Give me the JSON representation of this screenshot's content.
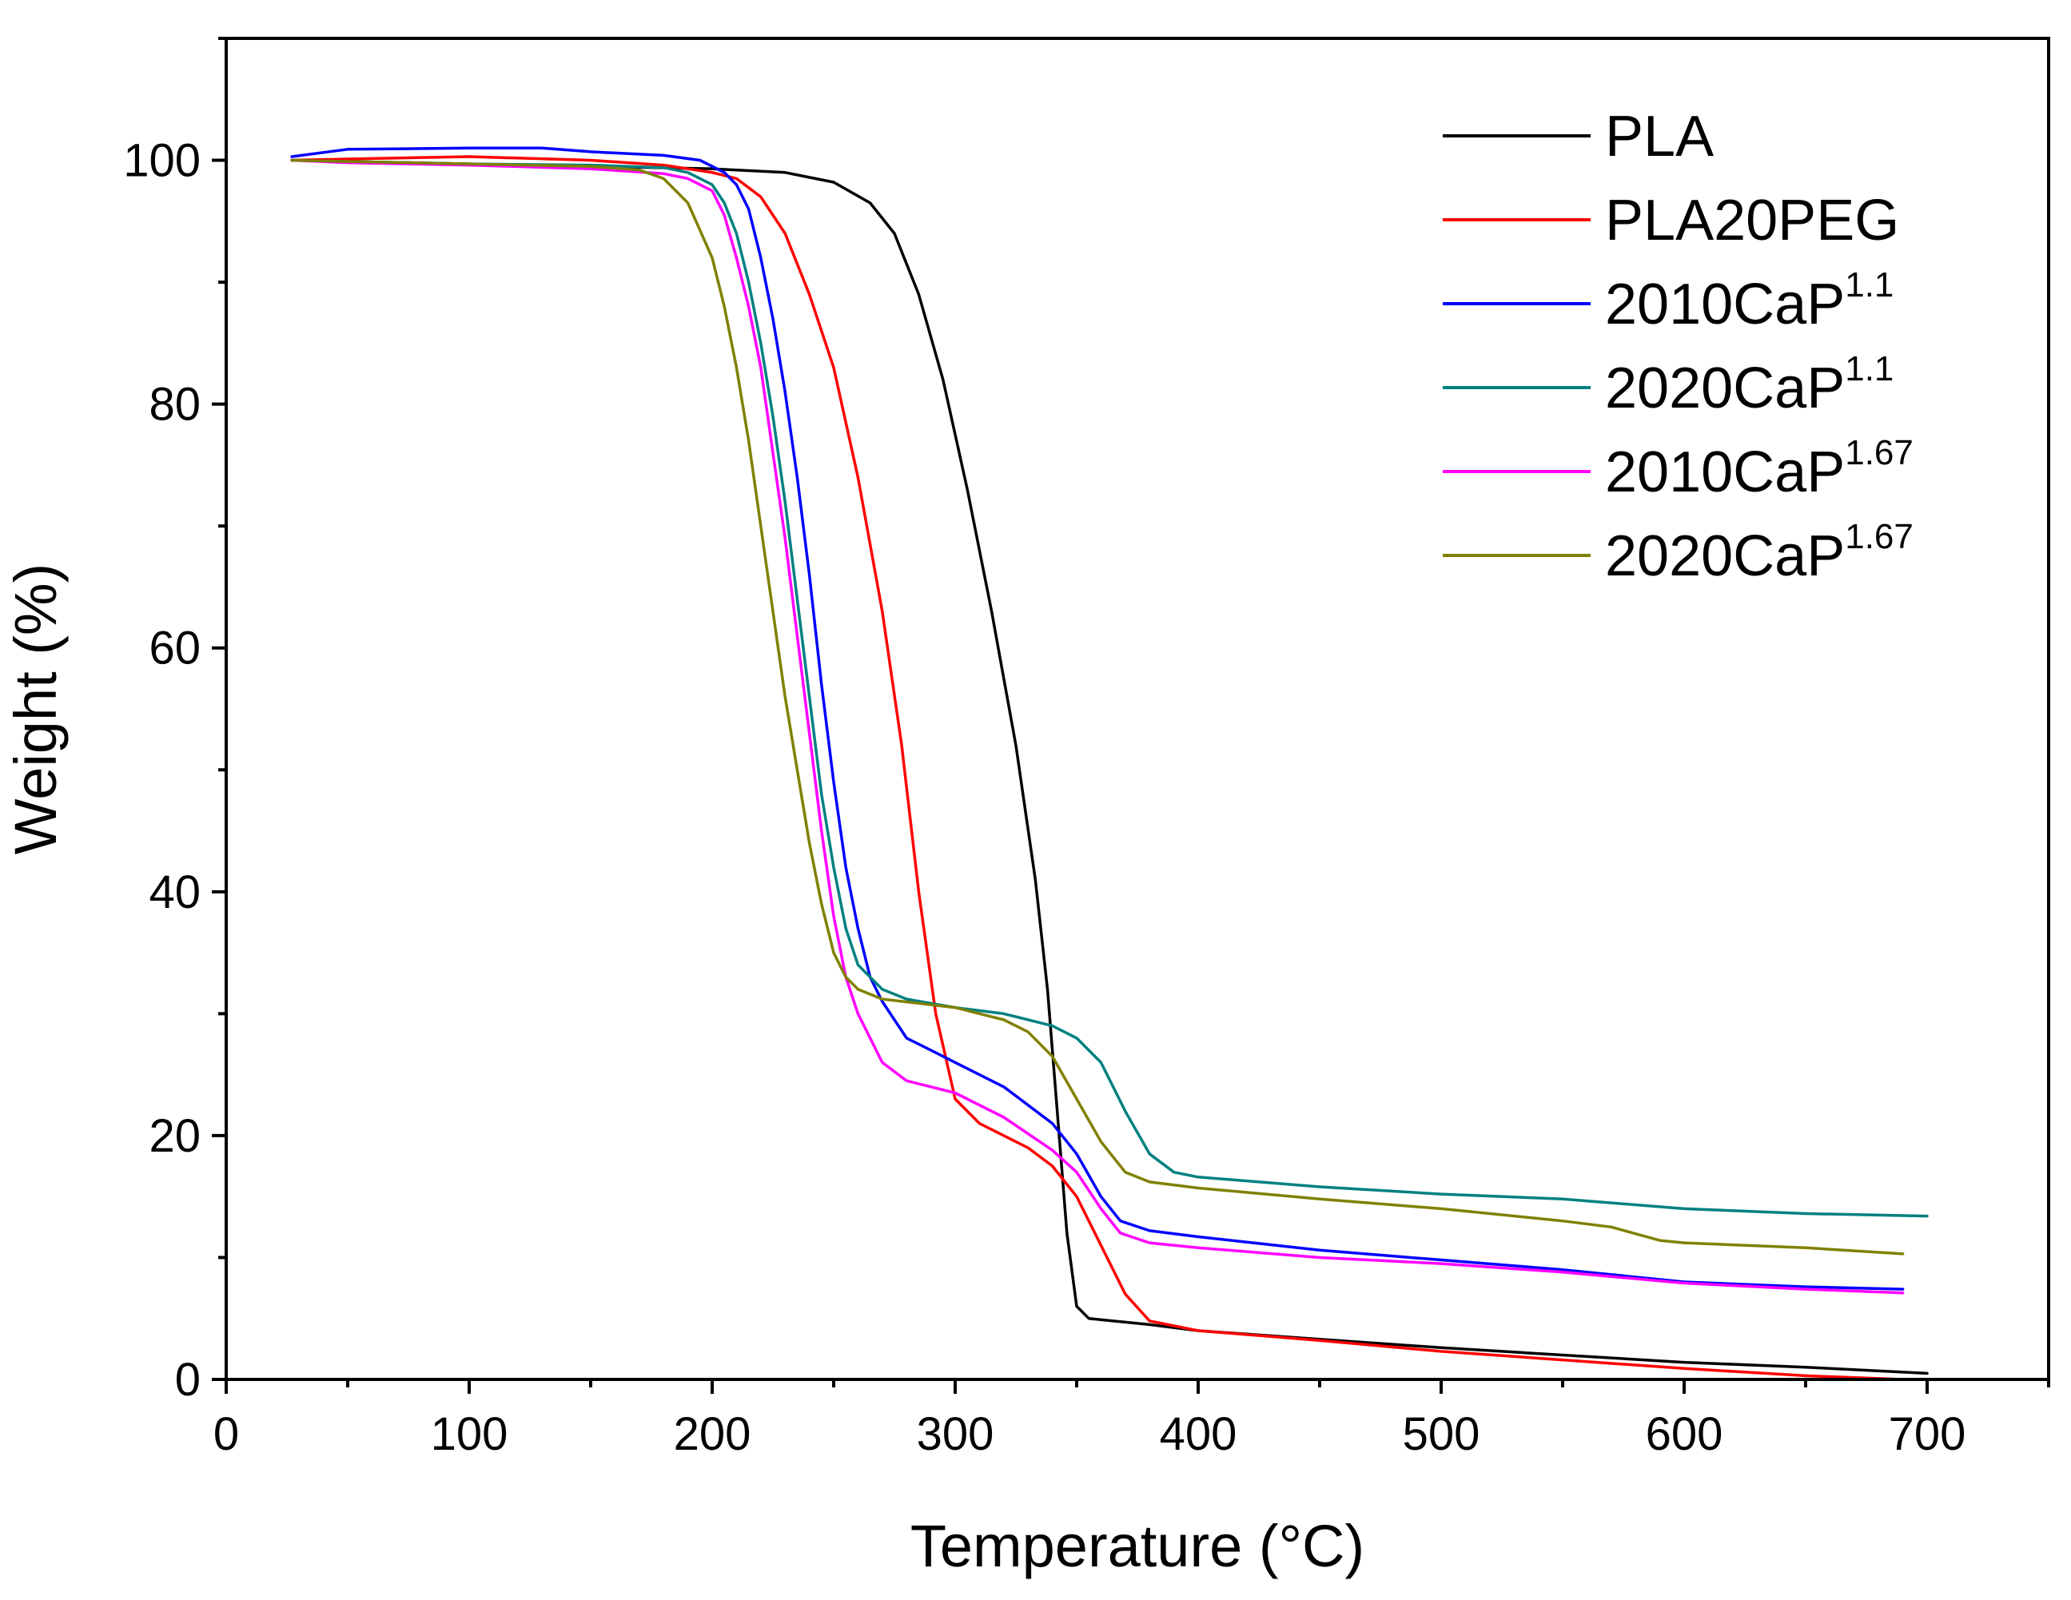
{
  "chart_data": {
    "type": "line",
    "title": "",
    "xlabel": "Temperature (°C)",
    "ylabel": "Weight (%)",
    "xlim": [
      0,
      750
    ],
    "ylim": [
      0,
      110
    ],
    "xticks": [
      0,
      100,
      200,
      300,
      400,
      500,
      600,
      700
    ],
    "yticks": [
      0,
      20,
      40,
      60,
      80,
      100
    ],
    "xtick_labels": [
      "0",
      "100",
      "200",
      "300",
      "400",
      "500",
      "600",
      "700"
    ],
    "ytick_labels": [
      "0",
      "20",
      "40",
      "60",
      "80",
      "100"
    ],
    "grid": false,
    "legend_position": "top-right",
    "series": [
      {
        "name": "PLA",
        "base": "PLA",
        "sup": "",
        "color": "#000000",
        "points": [
          [
            27,
            100
          ],
          [
            50,
            99.9
          ],
          [
            100,
            99.7
          ],
          [
            150,
            99.5
          ],
          [
            200,
            99.3
          ],
          [
            230,
            99
          ],
          [
            250,
            98.2
          ],
          [
            265,
            96.5
          ],
          [
            275,
            94
          ],
          [
            285,
            89
          ],
          [
            295,
            82
          ],
          [
            305,
            73
          ],
          [
            315,
            63
          ],
          [
            325,
            52
          ],
          [
            333,
            41
          ],
          [
            338,
            32
          ],
          [
            342,
            22
          ],
          [
            346,
            12
          ],
          [
            350,
            6
          ],
          [
            355,
            5
          ],
          [
            380,
            4.5
          ],
          [
            400,
            4
          ],
          [
            450,
            3.3
          ],
          [
            500,
            2.6
          ],
          [
            550,
            2
          ],
          [
            600,
            1.4
          ],
          [
            650,
            1
          ],
          [
            700,
            0.5
          ]
        ]
      },
      {
        "name": "PLA20PEG",
        "base": "PLA20PEG",
        "sup": "",
        "color": "#ff0000",
        "points": [
          [
            27,
            100
          ],
          [
            50,
            100.1
          ],
          [
            100,
            100.3
          ],
          [
            150,
            100
          ],
          [
            180,
            99.6
          ],
          [
            200,
            99
          ],
          [
            210,
            98.5
          ],
          [
            220,
            97
          ],
          [
            230,
            94
          ],
          [
            240,
            89
          ],
          [
            250,
            83
          ],
          [
            260,
            74
          ],
          [
            270,
            63
          ],
          [
            278,
            52
          ],
          [
            285,
            40
          ],
          [
            292,
            30
          ],
          [
            300,
            23
          ],
          [
            310,
            21
          ],
          [
            320,
            20
          ],
          [
            330,
            19
          ],
          [
            340,
            17.5
          ],
          [
            350,
            15
          ],
          [
            360,
            11
          ],
          [
            370,
            7
          ],
          [
            380,
            4.8
          ],
          [
            400,
            4
          ],
          [
            450,
            3.2
          ],
          [
            500,
            2.3
          ],
          [
            550,
            1.6
          ],
          [
            600,
            0.9
          ],
          [
            650,
            0.3
          ],
          [
            690,
            0
          ]
        ]
      },
      {
        "name": "2010CaP1.1",
        "base": "2010CaP",
        "sup": "1.1",
        "color": "#0000ff",
        "points": [
          [
            27,
            100.3
          ],
          [
            50,
            100.9
          ],
          [
            100,
            101
          ],
          [
            130,
            101
          ],
          [
            150,
            100.7
          ],
          [
            180,
            100.4
          ],
          [
            195,
            100
          ],
          [
            205,
            99
          ],
          [
            210,
            98
          ],
          [
            215,
            96
          ],
          [
            220,
            92
          ],
          [
            225,
            87
          ],
          [
            230,
            81
          ],
          [
            235,
            74
          ],
          [
            240,
            66
          ],
          [
            245,
            57
          ],
          [
            250,
            49
          ],
          [
            255,
            42
          ],
          [
            260,
            37
          ],
          [
            265,
            33
          ],
          [
            270,
            31
          ],
          [
            280,
            28
          ],
          [
            290,
            27
          ],
          [
            300,
            26
          ],
          [
            320,
            24
          ],
          [
            340,
            21
          ],
          [
            350,
            18.5
          ],
          [
            360,
            15
          ],
          [
            368,
            13
          ],
          [
            380,
            12.2
          ],
          [
            400,
            11.7
          ],
          [
            450,
            10.6
          ],
          [
            500,
            9.8
          ],
          [
            550,
            9
          ],
          [
            600,
            8
          ],
          [
            650,
            7.6
          ],
          [
            690,
            7.4
          ]
        ]
      },
      {
        "name": "2020CaP1.1",
        "base": "2020CaP",
        "sup": "1.1",
        "color": "#008080",
        "points": [
          [
            27,
            100
          ],
          [
            50,
            99.9
          ],
          [
            100,
            99.7
          ],
          [
            150,
            99.6
          ],
          [
            180,
            99.4
          ],
          [
            190,
            99
          ],
          [
            200,
            98
          ],
          [
            205,
            96.5
          ],
          [
            210,
            94
          ],
          [
            215,
            90
          ],
          [
            220,
            85
          ],
          [
            225,
            79
          ],
          [
            230,
            72
          ],
          [
            235,
            64
          ],
          [
            240,
            56
          ],
          [
            245,
            48
          ],
          [
            250,
            42
          ],
          [
            255,
            37
          ],
          [
            260,
            34
          ],
          [
            270,
            32
          ],
          [
            280,
            31.2
          ],
          [
            300,
            30.5
          ],
          [
            320,
            30
          ],
          [
            340,
            29
          ],
          [
            350,
            28
          ],
          [
            360,
            26
          ],
          [
            370,
            22
          ],
          [
            380,
            18.5
          ],
          [
            390,
            17
          ],
          [
            400,
            16.6
          ],
          [
            450,
            15.8
          ],
          [
            500,
            15.2
          ],
          [
            550,
            14.8
          ],
          [
            600,
            14
          ],
          [
            650,
            13.6
          ],
          [
            700,
            13.4
          ]
        ]
      },
      {
        "name": "2010CaP1.67",
        "base": "2010CaP",
        "sup": "1.67",
        "color": "#ff00ff",
        "points": [
          [
            27,
            100
          ],
          [
            50,
            99.8
          ],
          [
            100,
            99.6
          ],
          [
            150,
            99.3
          ],
          [
            180,
            98.9
          ],
          [
            190,
            98.5
          ],
          [
            200,
            97.5
          ],
          [
            205,
            95.5
          ],
          [
            210,
            92
          ],
          [
            215,
            88
          ],
          [
            220,
            83
          ],
          [
            225,
            76
          ],
          [
            230,
            69
          ],
          [
            235,
            61
          ],
          [
            240,
            53
          ],
          [
            245,
            45
          ],
          [
            250,
            38
          ],
          [
            255,
            33
          ],
          [
            260,
            30
          ],
          [
            265,
            28
          ],
          [
            270,
            26
          ],
          [
            280,
            24.5
          ],
          [
            300,
            23.5
          ],
          [
            320,
            21.5
          ],
          [
            340,
            18.8
          ],
          [
            350,
            17
          ],
          [
            360,
            14
          ],
          [
            368,
            12
          ],
          [
            380,
            11.2
          ],
          [
            400,
            10.8
          ],
          [
            450,
            10
          ],
          [
            500,
            9.5
          ],
          [
            550,
            8.8
          ],
          [
            600,
            7.9
          ],
          [
            650,
            7.4
          ],
          [
            690,
            7.1
          ]
        ]
      },
      {
        "name": "2020CaP1.67",
        "base": "2020CaP",
        "sup": "1.67",
        "color": "#808000",
        "points": [
          [
            27,
            100
          ],
          [
            50,
            99.9
          ],
          [
            100,
            99.7
          ],
          [
            150,
            99.5
          ],
          [
            170,
            99.2
          ],
          [
            180,
            98.5
          ],
          [
            190,
            96.5
          ],
          [
            200,
            92
          ],
          [
            205,
            88
          ],
          [
            210,
            83
          ],
          [
            215,
            77
          ],
          [
            220,
            70
          ],
          [
            225,
            63
          ],
          [
            230,
            56
          ],
          [
            235,
            50
          ],
          [
            240,
            44
          ],
          [
            245,
            39
          ],
          [
            250,
            35
          ],
          [
            255,
            33
          ],
          [
            260,
            32
          ],
          [
            270,
            31.2
          ],
          [
            300,
            30.5
          ],
          [
            320,
            29.5
          ],
          [
            330,
            28.5
          ],
          [
            340,
            26.5
          ],
          [
            350,
            23
          ],
          [
            360,
            19.5
          ],
          [
            370,
            17
          ],
          [
            380,
            16.2
          ],
          [
            400,
            15.7
          ],
          [
            450,
            14.8
          ],
          [
            500,
            14
          ],
          [
            550,
            13
          ],
          [
            570,
            12.5
          ],
          [
            590,
            11.4
          ],
          [
            600,
            11.2
          ],
          [
            650,
            10.8
          ],
          [
            690,
            10.3
          ]
        ]
      }
    ]
  }
}
